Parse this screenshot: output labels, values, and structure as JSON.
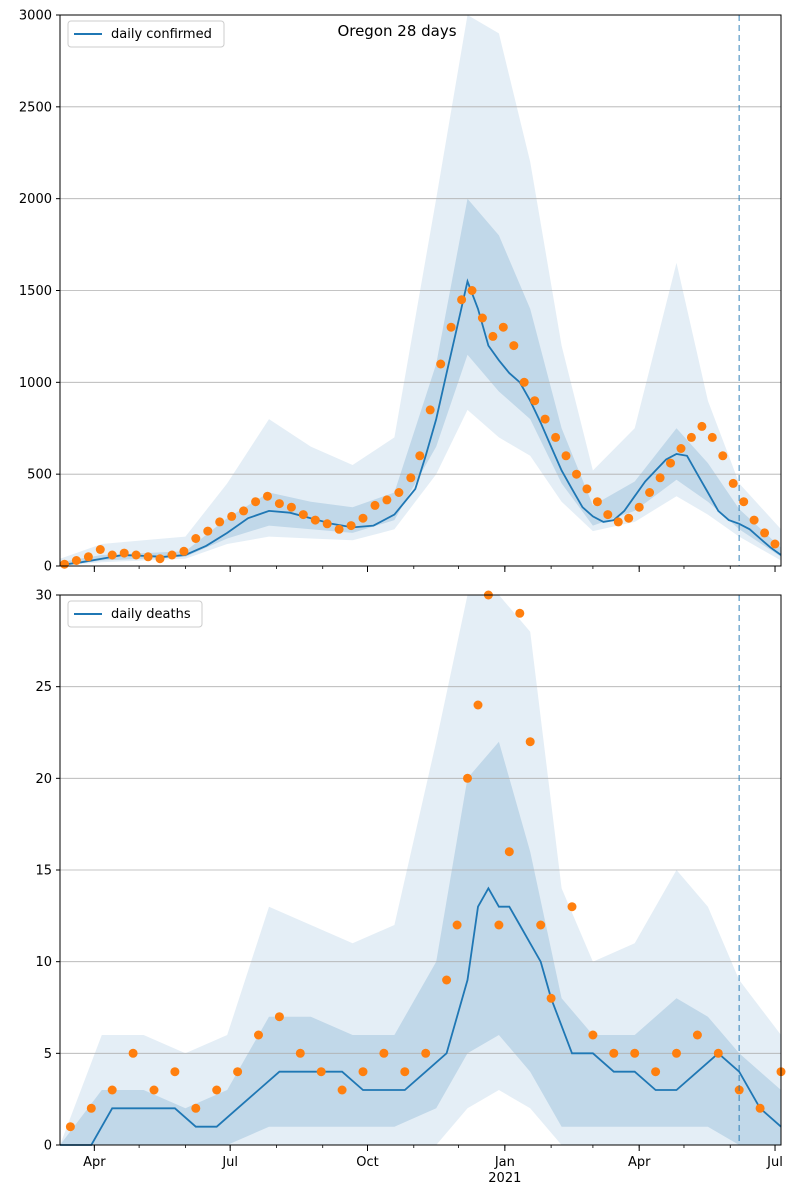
{
  "title": "Oregon 28 days",
  "colors": {
    "line": "#1f77b4",
    "points": "#ff7f0e",
    "band": "#1f77b4",
    "grid": "#b0b0b0",
    "forecast_line": "#1f77b4"
  },
  "x_axis": {
    "range": [
      "2020-03-09",
      "2021-07-05"
    ],
    "tick_labels": [
      {
        "date": "2020-04-01",
        "label": "Apr"
      },
      {
        "date": "2020-07-01",
        "label": "Jul"
      },
      {
        "date": "2020-10-01",
        "label": "Oct"
      },
      {
        "date": "2021-01-01",
        "label": "Jan",
        "sublabel": "2021"
      },
      {
        "date": "2021-04-01",
        "label": "Apr"
      },
      {
        "date": "2021-07-01",
        "label": "Jul"
      }
    ],
    "forecast_start": "2021-06-07"
  },
  "chart_data": [
    {
      "type": "line",
      "legend": "daily confirmed",
      "legend_position": "top-left",
      "grid": "horizontal",
      "ylim": [
        0,
        3000
      ],
      "yticks": [
        0,
        500,
        1000,
        1500,
        2000,
        2500,
        3000
      ],
      "line": {
        "dates": [
          "2020-03-09",
          "2020-03-23",
          "2020-04-06",
          "2020-04-20",
          "2020-05-04",
          "2020-05-18",
          "2020-06-01",
          "2020-06-15",
          "2020-06-29",
          "2020-07-13",
          "2020-07-27",
          "2020-08-10",
          "2020-08-24",
          "2020-09-07",
          "2020-09-21",
          "2020-10-05",
          "2020-10-19",
          "2020-11-02",
          "2020-11-09",
          "2020-11-16",
          "2020-11-23",
          "2020-11-30",
          "2020-12-07",
          "2020-12-14",
          "2020-12-21",
          "2020-12-28",
          "2021-01-04",
          "2021-01-11",
          "2021-01-18",
          "2021-01-25",
          "2021-02-01",
          "2021-02-08",
          "2021-02-15",
          "2021-02-22",
          "2021-03-01",
          "2021-03-08",
          "2021-03-15",
          "2021-03-22",
          "2021-03-29",
          "2021-04-05",
          "2021-04-12",
          "2021-04-19",
          "2021-04-26",
          "2021-05-03",
          "2021-05-10",
          "2021-05-17",
          "2021-05-24",
          "2021-05-31",
          "2021-06-07",
          "2021-06-14",
          "2021-06-21",
          "2021-06-28",
          "2021-07-05"
        ],
        "values": [
          5,
          20,
          40,
          60,
          55,
          50,
          60,
          110,
          180,
          260,
          300,
          290,
          260,
          230,
          210,
          220,
          280,
          420,
          600,
          800,
          1050,
          1300,
          1550,
          1400,
          1200,
          1120,
          1050,
          1000,
          900,
          780,
          650,
          520,
          420,
          320,
          270,
          240,
          250,
          300,
          380,
          460,
          520,
          580,
          610,
          600,
          500,
          400,
          300,
          250,
          230,
          200,
          150,
          100,
          60
        ]
      },
      "points": {
        "dates": [
          "2020-03-12",
          "2020-03-20",
          "2020-03-28",
          "2020-04-05",
          "2020-04-13",
          "2020-04-21",
          "2020-04-29",
          "2020-05-07",
          "2020-05-15",
          "2020-05-23",
          "2020-05-31",
          "2020-06-08",
          "2020-06-16",
          "2020-06-24",
          "2020-07-02",
          "2020-07-10",
          "2020-07-18",
          "2020-07-26",
          "2020-08-03",
          "2020-08-11",
          "2020-08-19",
          "2020-08-27",
          "2020-09-04",
          "2020-09-12",
          "2020-09-20",
          "2020-09-28",
          "2020-10-06",
          "2020-10-14",
          "2020-10-22",
          "2020-10-30",
          "2020-11-05",
          "2020-11-12",
          "2020-11-19",
          "2020-11-26",
          "2020-12-03",
          "2020-12-10",
          "2020-12-17",
          "2020-12-24",
          "2020-12-31",
          "2021-01-07",
          "2021-01-14",
          "2021-01-21",
          "2021-01-28",
          "2021-02-04",
          "2021-02-11",
          "2021-02-18",
          "2021-02-25",
          "2021-03-04",
          "2021-03-11",
          "2021-03-18",
          "2021-03-25",
          "2021-04-01",
          "2021-04-08",
          "2021-04-15",
          "2021-04-22",
          "2021-04-29",
          "2021-05-06",
          "2021-05-13",
          "2021-05-20",
          "2021-05-27",
          "2021-06-03",
          "2021-06-10",
          "2021-06-17",
          "2021-06-24",
          "2021-07-01"
        ],
        "values": [
          10,
          30,
          50,
          90,
          60,
          70,
          60,
          50,
          40,
          60,
          80,
          150,
          190,
          240,
          270,
          300,
          350,
          380,
          340,
          320,
          280,
          250,
          230,
          200,
          220,
          260,
          330,
          360,
          400,
          480,
          600,
          850,
          1100,
          1300,
          1450,
          1500,
          1350,
          1250,
          1300,
          1200,
          1000,
          900,
          800,
          700,
          600,
          500,
          420,
          350,
          280,
          240,
          260,
          320,
          400,
          480,
          560,
          640,
          700,
          760,
          700,
          600,
          450,
          350,
          250,
          180,
          120
        ]
      },
      "band": {
        "dates": [
          "2020-03-09",
          "2020-04-06",
          "2020-05-04",
          "2020-06-01",
          "2020-06-29",
          "2020-07-27",
          "2020-08-24",
          "2020-09-21",
          "2020-10-19",
          "2020-11-16",
          "2020-12-07",
          "2020-12-28",
          "2021-01-18",
          "2021-02-08",
          "2021-03-01",
          "2021-03-29",
          "2021-04-26",
          "2021-05-17",
          "2021-06-07",
          "2021-07-05"
        ],
        "low": [
          0,
          20,
          30,
          40,
          120,
          160,
          150,
          140,
          200,
          500,
          850,
          700,
          600,
          350,
          190,
          240,
          380,
          280,
          160,
          30
        ],
        "mid_low": [
          0,
          30,
          40,
          50,
          150,
          220,
          200,
          180,
          250,
          650,
          1150,
          950,
          800,
          450,
          220,
          300,
          470,
          350,
          200,
          50
        ],
        "mid_high": [
          20,
          60,
          70,
          80,
          260,
          400,
          350,
          320,
          400,
          1100,
          2000,
          1800,
          1400,
          750,
          330,
          460,
          750,
          560,
          310,
          100
        ],
        "high": [
          40,
          120,
          140,
          160,
          450,
          800,
          650,
          550,
          700,
          2000,
          3000,
          2900,
          2200,
          1200,
          520,
          750,
          1650,
          900,
          450,
          200
        ]
      }
    },
    {
      "type": "line",
      "legend": "daily deaths",
      "legend_position": "top-left",
      "grid": "horizontal",
      "ylim": [
        0,
        30
      ],
      "yticks": [
        0,
        5,
        10,
        15,
        20,
        25,
        30
      ],
      "line": {
        "dates": [
          "2020-03-09",
          "2020-03-30",
          "2020-04-13",
          "2020-04-27",
          "2020-05-11",
          "2020-05-25",
          "2020-06-08",
          "2020-06-22",
          "2020-07-06",
          "2020-07-20",
          "2020-08-03",
          "2020-08-17",
          "2020-08-31",
          "2020-09-14",
          "2020-09-28",
          "2020-10-12",
          "2020-10-26",
          "2020-11-09",
          "2020-11-23",
          "2020-12-07",
          "2020-12-14",
          "2020-12-21",
          "2020-12-28",
          "2021-01-04",
          "2021-01-11",
          "2021-01-18",
          "2021-01-25",
          "2021-02-01",
          "2021-02-15",
          "2021-03-01",
          "2021-03-15",
          "2021-03-29",
          "2021-04-12",
          "2021-04-26",
          "2021-05-10",
          "2021-05-24",
          "2021-06-07",
          "2021-06-21",
          "2021-07-05"
        ],
        "values": [
          0,
          0,
          2,
          2,
          2,
          2,
          1,
          1,
          2,
          3,
          4,
          4,
          4,
          4,
          3,
          3,
          3,
          4,
          5,
          9,
          13,
          14,
          13,
          13,
          12,
          11,
          10,
          8,
          5,
          5,
          4,
          4,
          3,
          3,
          4,
          5,
          4,
          2,
          1
        ]
      },
      "points": {
        "dates": [
          "2020-03-16",
          "2020-03-30",
          "2020-04-13",
          "2020-04-27",
          "2020-05-11",
          "2020-05-25",
          "2020-06-08",
          "2020-06-22",
          "2020-07-06",
          "2020-07-20",
          "2020-08-03",
          "2020-08-17",
          "2020-08-31",
          "2020-09-14",
          "2020-09-28",
          "2020-10-12",
          "2020-10-26",
          "2020-11-09",
          "2020-11-23",
          "2020-11-30",
          "2020-12-07",
          "2020-12-14",
          "2020-12-21",
          "2020-12-28",
          "2021-01-04",
          "2021-01-11",
          "2021-01-18",
          "2021-01-25",
          "2021-02-01",
          "2021-02-15",
          "2021-03-01",
          "2021-03-15",
          "2021-03-29",
          "2021-04-12",
          "2021-04-26",
          "2021-05-10",
          "2021-05-24",
          "2021-06-07",
          "2021-06-21",
          "2021-07-05"
        ],
        "values": [
          1,
          2,
          3,
          5,
          3,
          4,
          2,
          3,
          4,
          6,
          7,
          5,
          4,
          3,
          4,
          5,
          4,
          5,
          9,
          12,
          20,
          24,
          30,
          12,
          16,
          29,
          22,
          12,
          8,
          13,
          6,
          5,
          5,
          4,
          5,
          6,
          5,
          3,
          2,
          4
        ]
      },
      "band": {
        "dates": [
          "2020-03-09",
          "2020-04-06",
          "2020-05-04",
          "2020-06-01",
          "2020-06-29",
          "2020-07-27",
          "2020-08-24",
          "2020-09-21",
          "2020-10-19",
          "2020-11-16",
          "2020-12-07",
          "2020-12-28",
          "2021-01-18",
          "2021-02-08",
          "2021-03-01",
          "2021-03-29",
          "2021-04-26",
          "2021-05-17",
          "2021-06-07",
          "2021-07-05"
        ],
        "low": [
          0,
          0,
          0,
          0,
          0,
          0,
          0,
          0,
          0,
          0,
          2,
          3,
          2,
          0,
          0,
          0,
          0,
          0,
          0,
          0
        ],
        "mid_low": [
          0,
          0,
          0,
          0,
          0,
          1,
          1,
          1,
          1,
          2,
          5,
          6,
          4,
          1,
          1,
          1,
          1,
          1,
          0,
          0
        ],
        "mid_high": [
          0,
          3,
          3,
          2,
          3,
          7,
          7,
          6,
          6,
          10,
          20,
          22,
          16,
          8,
          6,
          6,
          8,
          7,
          5,
          3
        ],
        "high": [
          0,
          6,
          6,
          5,
          6,
          13,
          12,
          11,
          12,
          22,
          30,
          30,
          28,
          14,
          10,
          11,
          15,
          13,
          9,
          6
        ]
      }
    }
  ]
}
